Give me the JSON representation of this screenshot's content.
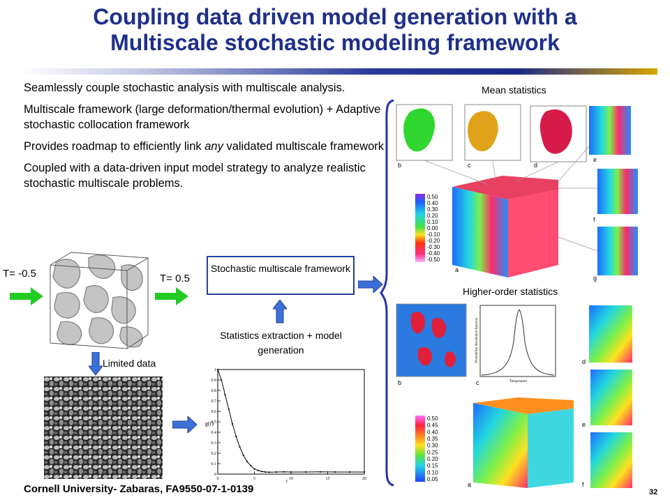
{
  "slide": {
    "title_line1": "Coupling data driven model generation with a",
    "title_line2": "Multiscale stochastic modeling framework",
    "bullets": [
      "Seamlessly couple stochastic analysis with multiscale analysis.",
      "Multiscale framework (large deformation/thermal evolution) + Adaptive stochastic collocation framework",
      "Provides roadmap to efficiently link",
      "any",
      "validated multiscale framework",
      "Coupled with a data-driven input model strategy to analyze realistic stochastic multiscale problems."
    ],
    "temp_left": "T= -0.5",
    "temp_right": "T= 0.5",
    "box_label": "Stochastic multiscale framework",
    "stats_label": "Statistics extraction + model generation",
    "limited_label": "Limited data",
    "mean_label": "Mean statistics",
    "higher_label": "Higher-order statistics",
    "footer": "Cornell University- Zabaras, FA9550-07-1-0139",
    "page_number": "32",
    "colorbar_top": [
      "0.50",
      "0.40",
      "0.30",
      "0.20",
      "0.10",
      "0.00",
      "-0.10",
      "-0.20",
      "-0.30",
      "-0.40",
      "-0.50"
    ],
    "colorbar_bottom": [
      "0.50",
      "0.45",
      "0.40",
      "0.35",
      "0.30",
      "0.25",
      "0.20",
      "0.15",
      "0.10",
      "0.05"
    ],
    "panel_letters_top": [
      "b",
      "c",
      "d",
      "e",
      "f",
      "g",
      "a"
    ],
    "panel_letters_bottom": [
      "b",
      "c",
      "d",
      "e",
      "f",
      "a"
    ],
    "pdf_axis_label": "Probability distribution function",
    "pdf_x_label": "Temperature",
    "corr_y_label": "g(r)",
    "colors": {
      "title": "#1f2f8a",
      "accent": "#2340a0",
      "arrow_green": "#22cc22",
      "arrow_blue": "#3d6fd8",
      "bracket": "#2233aa"
    }
  },
  "chart_data": {
    "type": "line",
    "title": "",
    "xlabel": "r",
    "ylabel": "g(r)",
    "xlim": [
      0,
      20
    ],
    "ylim": [
      0,
      1
    ],
    "xticks": [
      "0",
      "5",
      "10",
      "15",
      "20"
    ],
    "yticks": [
      "0",
      "0.1",
      "0.2",
      "0.3",
      "0.4",
      "0.5",
      "0.6",
      "0.7",
      "0.8",
      "0.9",
      "1"
    ],
    "series": [
      {
        "x": [
          0,
          0.5,
          1,
          1.5,
          2,
          2.5,
          3,
          3.5,
          4,
          4.5,
          5,
          5.5,
          6,
          6.5,
          7,
          8,
          9,
          10,
          12,
          14,
          16,
          18,
          20
        ],
        "y": [
          1.0,
          0.9,
          0.76,
          0.62,
          0.48,
          0.36,
          0.26,
          0.18,
          0.12,
          0.08,
          0.05,
          0.035,
          0.025,
          0.02,
          0.018,
          0.02,
          0.022,
          0.02,
          0.02,
          0.021,
          0.02,
          0.02,
          0.02
        ]
      }
    ]
  }
}
